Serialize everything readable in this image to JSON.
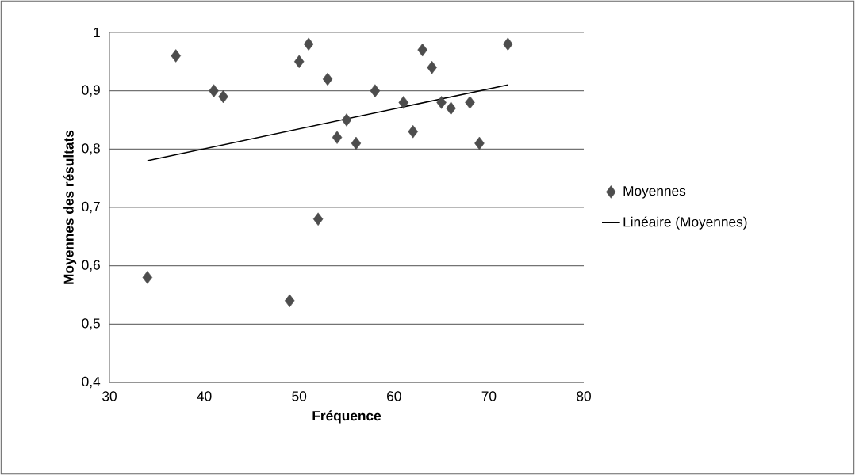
{
  "chart_data": {
    "type": "scatter",
    "xlabel": "Fréquence",
    "ylabel": "Moyennes des résultats",
    "xlim": [
      30,
      80
    ],
    "xticks": [
      30,
      40,
      50,
      60,
      70,
      80
    ],
    "ylim": [
      0.4,
      1
    ],
    "yticks": [
      {
        "value": 0.4,
        "label": "0,4"
      },
      {
        "value": 0.5,
        "label": "0,5"
      },
      {
        "value": 0.6,
        "label": "0,6"
      },
      {
        "value": 0.7,
        "label": "0,7"
      },
      {
        "value": 0.8,
        "label": "0,8"
      },
      {
        "value": 0.9,
        "label": "0,9"
      },
      1
    ],
    "grid": "y",
    "legend": "right",
    "series": [
      {
        "name": "Moyennes",
        "marker": "diamond",
        "color": "#4d4d4d",
        "x": [
          34,
          37,
          41,
          42,
          49,
          50,
          51,
          52,
          53,
          54,
          55,
          56,
          58,
          61,
          62,
          63,
          64,
          65,
          66,
          68,
          69,
          72
        ],
        "values": [
          0.58,
          0.96,
          0.9,
          0.89,
          0.54,
          0.95,
          0.98,
          0.68,
          0.92,
          0.82,
          0.85,
          0.81,
          0.9,
          0.88,
          0.83,
          0.97,
          0.94,
          0.88,
          0.87,
          0.88,
          0.81,
          0.98
        ]
      },
      {
        "name": "Linéaire (Moyennes)",
        "type": "line",
        "color": "#000000",
        "x": [
          34,
          72
        ],
        "values": [
          0.78,
          0.91
        ]
      }
    ]
  }
}
